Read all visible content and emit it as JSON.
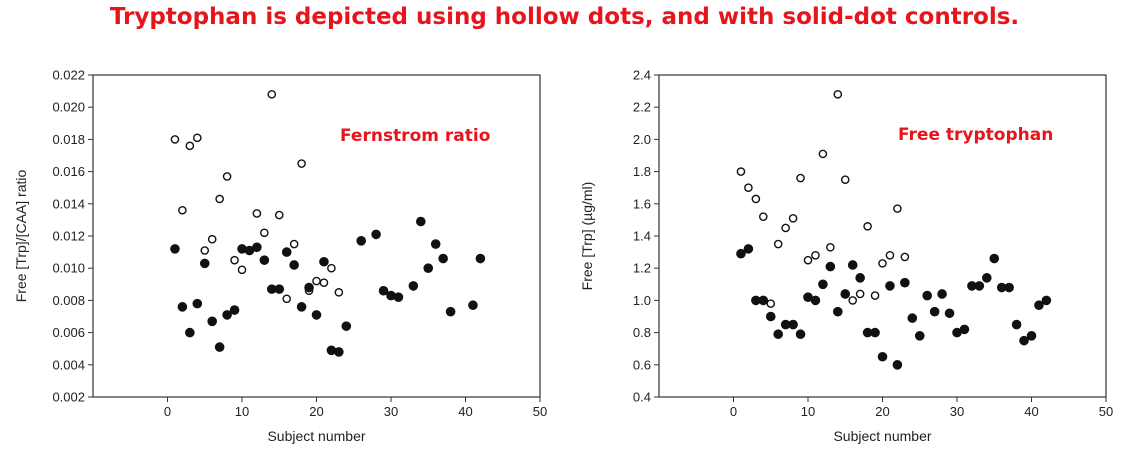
{
  "headline": "Tryptophan is depicted using hollow dots, and with solid-dot controls.",
  "colors": {
    "headline": "#e8141c",
    "annotation": "#e8141c",
    "marker": "#111111",
    "axis": "#333333"
  },
  "chart_data": [
    {
      "type": "scatter",
      "title": "",
      "annotation": "Fernstrom ratio",
      "xlabel": "Subject number",
      "ylabel": "Free [Trp]/[CAA] ratio",
      "xlim": [
        -10,
        50
      ],
      "ylim": [
        0.002,
        0.022
      ],
      "x_ticks": [
        0,
        10,
        20,
        30,
        40,
        50
      ],
      "y_ticks": [
        0.002,
        0.004,
        0.006,
        0.008,
        0.01,
        0.012,
        0.014,
        0.016,
        0.018,
        0.02,
        0.022
      ],
      "y_decimals": 3,
      "grid": false,
      "series": [
        {
          "marker": "hollow",
          "x": [
            1,
            2,
            3,
            4,
            5,
            6,
            7,
            8,
            9,
            10,
            11,
            12,
            13,
            14,
            15,
            16,
            17,
            18,
            19,
            20,
            21,
            22,
            23
          ],
          "y": [
            0.018,
            0.0136,
            0.0176,
            0.0181,
            0.0111,
            0.0118,
            0.0143,
            0.0157,
            0.0105,
            0.0099,
            0.0111,
            0.0134,
            0.0122,
            0.0208,
            0.0133,
            0.0081,
            0.0115,
            0.0165,
            0.0086,
            0.0092,
            0.0091,
            0.01,
            0.0085
          ]
        },
        {
          "marker": "solid",
          "x": [
            1,
            2,
            3,
            4,
            5,
            6,
            7,
            8,
            9,
            10,
            11,
            12,
            13,
            14,
            15,
            16,
            17,
            18,
            19,
            20,
            21,
            22,
            23,
            24,
            26,
            28,
            29,
            30,
            31,
            33,
            34,
            35,
            36,
            37,
            38,
            41,
            42
          ],
          "y": [
            0.0112,
            0.0076,
            0.006,
            0.0078,
            0.0103,
            0.0067,
            0.0051,
            0.0071,
            0.0074,
            0.0112,
            0.0111,
            0.0113,
            0.0105,
            0.0087,
            0.0087,
            0.011,
            0.0102,
            0.0076,
            0.0088,
            0.0071,
            0.0104,
            0.0049,
            0.0048,
            0.0064,
            0.0117,
            0.0121,
            0.0086,
            0.0083,
            0.0082,
            0.0089,
            0.0129,
            0.01,
            0.0115,
            0.0106,
            0.0073,
            0.0077,
            0.0106
          ]
        }
      ]
    },
    {
      "type": "scatter",
      "title": "",
      "annotation": "Free tryptophan",
      "xlabel": "Subject number",
      "ylabel": "Free [Trp] (µg/ml)",
      "xlim": [
        -10,
        50
      ],
      "ylim": [
        0.4,
        2.4
      ],
      "x_ticks": [
        0,
        10,
        20,
        30,
        40,
        50
      ],
      "y_ticks": [
        0.4,
        0.6,
        0.8,
        1.0,
        1.2,
        1.4,
        1.6,
        1.8,
        2.0,
        2.2,
        2.4
      ],
      "y_decimals": 1,
      "grid": false,
      "series": [
        {
          "marker": "hollow",
          "x": [
            1,
            2,
            3,
            4,
            5,
            6,
            7,
            8,
            9,
            10,
            11,
            12,
            13,
            14,
            15,
            16,
            17,
            18,
            19,
            20,
            21,
            22,
            23
          ],
          "y": [
            1.8,
            1.7,
            1.63,
            1.52,
            0.98,
            1.35,
            1.45,
            1.51,
            1.76,
            1.25,
            1.28,
            1.91,
            1.33,
            2.28,
            1.75,
            1.0,
            1.04,
            1.46,
            1.03,
            1.23,
            1.28,
            1.57,
            1.27
          ]
        },
        {
          "marker": "solid",
          "x": [
            1,
            2,
            3,
            4,
            5,
            6,
            7,
            8,
            9,
            10,
            11,
            12,
            13,
            14,
            15,
            16,
            17,
            18,
            19,
            20,
            21,
            22,
            23,
            24,
            25,
            26,
            27,
            28,
            29,
            30,
            31,
            32,
            33,
            34,
            35,
            36,
            37,
            38,
            39,
            40,
            41,
            42
          ],
          "y": [
            1.29,
            1.32,
            1.0,
            1.0,
            0.9,
            0.79,
            0.85,
            0.85,
            0.79,
            1.02,
            1.0,
            1.1,
            1.21,
            0.93,
            1.04,
            1.22,
            1.14,
            0.8,
            0.8,
            0.65,
            1.09,
            0.6,
            1.11,
            0.89,
            0.78,
            1.03,
            0.93,
            1.04,
            0.92,
            0.8,
            0.82,
            1.09,
            1.09,
            1.14,
            1.26,
            1.08,
            1.08,
            0.85,
            0.75,
            0.78,
            0.97,
            1.0
          ]
        }
      ]
    }
  ]
}
